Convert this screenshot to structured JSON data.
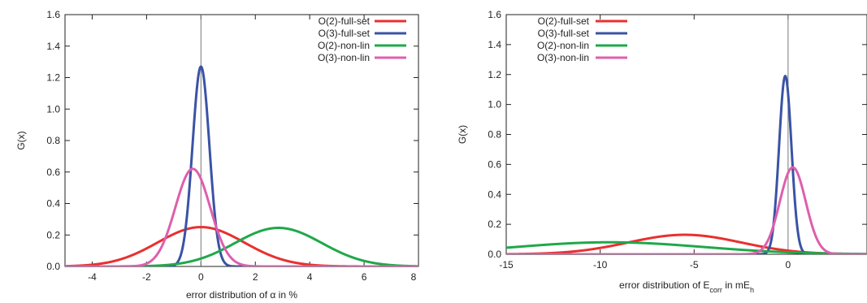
{
  "chart_data": [
    {
      "type": "line",
      "title": "",
      "xlabel": "error distribution of α in %",
      "xlabel_parts": [
        {
          "text": "error distribution of α in %",
          "sub": false
        }
      ],
      "ylabel": "G(x)",
      "xlim": [
        -5,
        8
      ],
      "ylim": [
        0,
        1.6
      ],
      "x_ticks": [
        -4,
        -2,
        0,
        2,
        4,
        6,
        8
      ],
      "y_ticks": [
        "0.0",
        "0.2",
        "0.4",
        "0.6",
        "0.8",
        "1.0",
        "1.2",
        "1.4",
        "1.6"
      ],
      "legend": "top-right",
      "vertical_line_at": 0,
      "series": [
        {
          "name": "O(2)-full-set",
          "color": "#e8302f",
          "mu": 0.0,
          "peak": 0.25
        },
        {
          "name": "O(3)-full-set",
          "color": "#3a53a4",
          "mu": 0.0,
          "peak": 1.27
        },
        {
          "name": "O(2)-non-lin",
          "color": "#1fa84a",
          "mu": 2.85,
          "peak": 0.245
        },
        {
          "name": "O(3)-non-lin",
          "color": "#dd5fae",
          "mu": -0.3,
          "peak": 0.62
        }
      ]
    },
    {
      "type": "line",
      "title": "",
      "xlabel": "error distribution of Ecorr in mEh",
      "xlabel_parts": [
        {
          "text": "error distribution of E",
          "sub": false
        },
        {
          "text": "corr",
          "sub": true
        },
        {
          "text": " in mE",
          "sub": false
        },
        {
          "text": "h",
          "sub": true
        }
      ],
      "ylabel": "G(x)",
      "xlim": [
        -15,
        4.2
      ],
      "ylim": [
        0,
        1.6
      ],
      "x_ticks": [
        -15,
        -10,
        -5,
        0
      ],
      "y_ticks": [
        "0.0",
        "0.2",
        "0.4",
        "0.6",
        "0.8",
        "1.0",
        "1.2",
        "1.4",
        "1.6"
      ],
      "legend": "top-left",
      "vertical_line_at": 0,
      "series": [
        {
          "name": "O(2)-full-set",
          "color": "#e8302f",
          "mu": -5.5,
          "peak": 0.13
        },
        {
          "name": "O(3)-full-set",
          "color": "#3a53a4",
          "mu": -0.15,
          "peak": 1.19
        },
        {
          "name": "O(2)-non-lin",
          "color": "#1fa84a",
          "mu": -9.5,
          "peak": 0.08
        },
        {
          "name": "O(3)-non-lin",
          "color": "#dd5fae",
          "mu": 0.25,
          "peak": 0.58
        }
      ]
    }
  ]
}
